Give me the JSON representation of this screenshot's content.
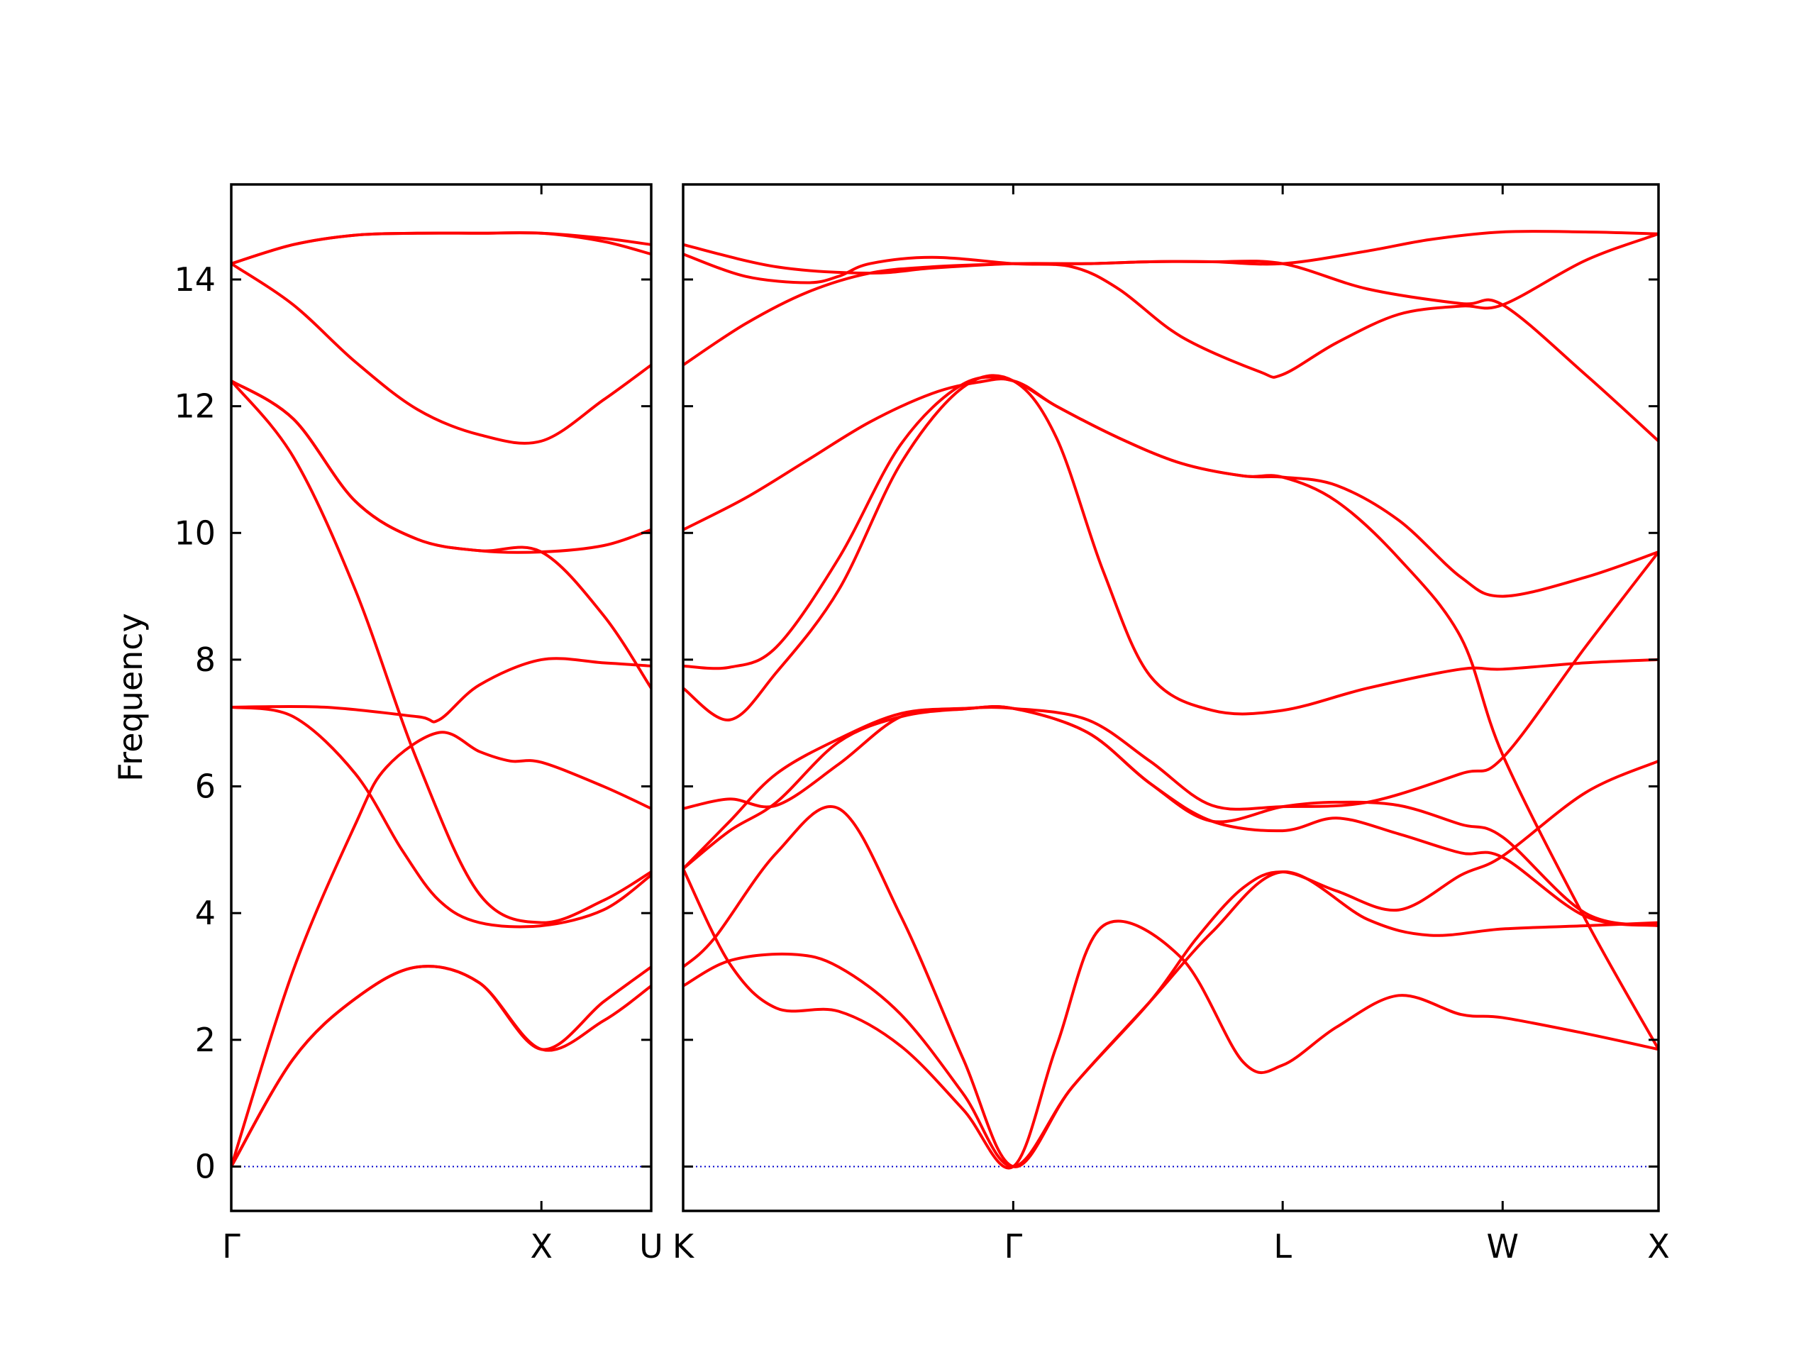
{
  "chart_data": {
    "type": "line",
    "title": "",
    "xlabel": "",
    "ylabel": "Frequency",
    "ylim": [
      -0.7,
      15.5
    ],
    "yticks": [
      0,
      2,
      4,
      6,
      8,
      10,
      12,
      14
    ],
    "colors": {
      "band": "#ff0000",
      "zero_line": "#0000cc",
      "frame": "#000000"
    },
    "grid": false,
    "legend": "none",
    "panels": [
      {
        "id": "left",
        "xlim": [
          0,
          1.354
        ],
        "xticks": [
          {
            "x": 0,
            "label": "Γ"
          },
          {
            "x": 1.0,
            "label": "X"
          },
          {
            "x": 1.354,
            "label": "U"
          }
        ],
        "bands": [
          {
            "name": "",
            "x": [
              0,
              0.2,
              0.4,
              0.6,
              0.8,
              1.0,
              1.2,
              1.354
            ],
            "y": [
              0,
              1.7,
              2.65,
              3.15,
              2.9,
              1.85,
              2.3,
              2.85
            ]
          },
          {
            "name": "",
            "x": [
              0,
              0.2,
              0.4,
              0.6,
              0.8,
              1.0,
              1.2,
              1.354
            ],
            "y": [
              0,
              1.7,
              2.65,
              3.15,
              2.9,
              1.85,
              2.6,
              3.15
            ]
          },
          {
            "name": "",
            "x": [
              0,
              0.2,
              0.4,
              0.5,
              0.67,
              0.8,
              0.9,
              1.0,
              1.2,
              1.354
            ],
            "y": [
              0,
              3.1,
              5.4,
              6.3,
              6.85,
              6.55,
              6.4,
              6.38,
              6.0,
              5.65
            ]
          },
          {
            "name": "",
            "x": [
              0,
              0.2,
              0.4,
              0.55,
              0.67,
              0.8,
              1.0,
              1.2,
              1.354
            ],
            "y": [
              7.25,
              7.1,
              6.2,
              5.0,
              4.2,
              3.85,
              3.8,
              4.05,
              4.6
            ]
          },
          {
            "name": "",
            "x": [
              0,
              0.3,
              0.6,
              0.67,
              0.8,
              1.0,
              1.2,
              1.354
            ],
            "y": [
              7.25,
              7.25,
              7.1,
              7.05,
              7.6,
              8.0,
              7.95,
              7.9
            ]
          },
          {
            "name": "",
            "x": [
              0,
              0.2,
              0.4,
              0.6,
              0.8,
              1.0,
              1.2,
              1.354
            ],
            "y": [
              12.4,
              11.2,
              9.1,
              6.4,
              4.3,
              3.85,
              4.2,
              4.65
            ]
          },
          {
            "name": "",
            "x": [
              0,
              0.2,
              0.4,
              0.6,
              0.8,
              1.0,
              1.2,
              1.354
            ],
            "y": [
              12.4,
              11.8,
              10.5,
              9.9,
              9.72,
              9.7,
              9.8,
              10.05
            ]
          },
          {
            "name": "",
            "x": [
              0,
              0.2,
              0.4,
              0.6,
              0.8,
              1.0,
              1.2,
              1.354
            ],
            "y": [
              12.4,
              11.8,
              10.5,
              9.9,
              9.72,
              9.7,
              8.7,
              7.55
            ]
          },
          {
            "name": "",
            "x": [
              0,
              0.2,
              0.4,
              0.6,
              0.8,
              1.0,
              1.2,
              1.354
            ],
            "y": [
              14.25,
              13.6,
              12.7,
              11.95,
              11.55,
              11.45,
              12.1,
              12.65
            ]
          },
          {
            "name": "",
            "x": [
              0,
              0.2,
              0.4,
              0.6,
              0.8,
              1.0,
              1.2,
              1.354
            ],
            "y": [
              14.25,
              14.55,
              14.7,
              14.73,
              14.73,
              14.73,
              14.65,
              14.55
            ]
          },
          {
            "name": "",
            "x": [
              0,
              0.2,
              0.4,
              0.6,
              0.8,
              1.0,
              1.2,
              1.354
            ],
            "y": [
              14.25,
              14.55,
              14.7,
              14.73,
              14.73,
              14.73,
              14.6,
              14.4
            ]
          }
        ]
      },
      {
        "id": "right",
        "xlim": [
          0,
          3.135
        ],
        "xticks": [
          {
            "x": 0,
            "label": "K"
          },
          {
            "x": 1.061,
            "label": "Γ"
          },
          {
            "x": 1.927,
            "label": "L"
          },
          {
            "x": 2.634,
            "label": "W"
          },
          {
            "x": 3.135,
            "label": "X"
          }
        ],
        "bands": [
          {
            "name": "",
            "x": [
              0,
              0.15,
              0.35,
              0.5,
              0.7,
              0.9,
              1.061,
              1.25,
              1.5,
              1.7,
              1.927,
              2.2,
              2.4,
              2.634,
              2.9,
              3.135
            ],
            "y": [
              2.85,
              3.25,
              3.35,
              3.15,
              2.4,
              1.15,
              0,
              1.25,
              2.6,
              3.7,
              4.65,
              3.9,
              3.65,
              3.75,
              3.8,
              3.85
            ]
          },
          {
            "name": "",
            "x": [
              0,
              0.1,
              0.3,
              0.5,
              0.7,
              0.9,
              1.061,
              1.25,
              1.5,
              1.65,
              1.8,
              1.927,
              2.1,
              2.3,
              2.5,
              2.634,
              2.9,
              3.135
            ],
            "y": [
              3.15,
              3.6,
              4.95,
              5.65,
              3.95,
              1.7,
              0,
              1.25,
              2.6,
              3.6,
              4.4,
              4.65,
              4.35,
              4.05,
              4.6,
              4.9,
              5.9,
              6.4
            ]
          },
          {
            "name": "",
            "x": [
              0,
              0.15,
              0.3,
              0.5,
              0.7,
              0.9,
              1.061,
              1.2,
              1.35,
              1.6,
              1.8,
              1.927,
              2.1,
              2.3,
              2.5,
              2.634,
              2.9,
              3.135
            ],
            "y": [
              4.7,
              3.2,
              2.5,
              2.45,
              1.9,
              0.9,
              0,
              1.9,
              3.8,
              3.3,
              1.65,
              1.6,
              2.2,
              2.7,
              2.4,
              2.35,
              2.1,
              1.85
            ]
          },
          {
            "name": "",
            "x": [
              0,
              0.15,
              0.3,
              0.5,
              0.7,
              0.9,
              1.061,
              1.3,
              1.5,
              1.7,
              1.927,
              2.2,
              2.5,
              2.634,
              2.9,
              3.135
            ],
            "y": [
              4.7,
              5.45,
              6.2,
              6.75,
              7.15,
              7.23,
              7.23,
              7.05,
              6.4,
              5.7,
              5.68,
              5.75,
              6.2,
              6.45,
              8.2,
              9.7
            ]
          },
          {
            "name": "",
            "x": [
              0,
              0.15,
              0.3,
              0.5,
              0.7,
              0.9,
              1.061,
              1.3,
              1.5,
              1.7,
              1.927,
              2.1,
              2.3,
              2.5,
              2.634,
              2.9,
              3.135
            ],
            "y": [
              4.7,
              5.3,
              5.75,
              6.7,
              7.1,
              7.22,
              7.23,
              6.85,
              6.05,
              5.45,
              5.3,
              5.5,
              5.25,
              4.95,
              4.88,
              3.95,
              3.8
            ]
          },
          {
            "name": "",
            "x": [
              0,
              0.15,
              0.3,
              0.5,
              0.7,
              0.9,
              1.061,
              1.3,
              1.5,
              1.7,
              1.927,
              2.1,
              2.3,
              2.5,
              2.634,
              2.9,
              3.135
            ],
            "y": [
              5.65,
              5.8,
              5.7,
              6.35,
              7.1,
              7.22,
              7.23,
              6.85,
              6.05,
              5.45,
              5.68,
              5.75,
              5.7,
              5.4,
              5.2,
              4.0,
              3.8
            ]
          },
          {
            "name": "",
            "x": [
              0,
              0.15,
              0.3,
              0.5,
              0.7,
              0.9,
              1.061,
              1.2,
              1.35,
              1.5,
              1.7,
              1.927,
              2.2,
              2.5,
              2.634,
              2.9,
              3.135
            ],
            "y": [
              7.55,
              7.05,
              7.8,
              9.1,
              11.1,
              12.3,
              12.4,
              11.5,
              9.4,
              7.75,
              7.2,
              7.2,
              7.55,
              7.85,
              7.85,
              7.95,
              8.0
            ]
          },
          {
            "name": "",
            "x": [
              0,
              0.15,
              0.3,
              0.5,
              0.7,
              0.9,
              1.061,
              1.2,
              1.4,
              1.6,
              1.8,
              1.927,
              2.1,
              2.3,
              2.5,
              2.634,
              2.9,
              3.135
            ],
            "y": [
              7.9,
              7.88,
              8.2,
              9.6,
              11.4,
              12.35,
              12.4,
              12.0,
              11.5,
              11.1,
              10.9,
              10.88,
              10.5,
              9.6,
              8.35,
              6.5,
              3.9,
              1.85
            ]
          },
          {
            "name": "",
            "x": [
              0,
              0.2,
              0.4,
              0.6,
              0.8,
              0.95,
              1.061,
              1.2,
              1.4,
              1.6,
              1.8,
              1.927,
              2.1,
              2.3,
              2.5,
              2.634,
              2.9,
              3.135
            ],
            "y": [
              10.05,
              10.55,
              11.15,
              11.75,
              12.2,
              12.38,
              12.4,
              12.0,
              11.5,
              11.1,
              10.9,
              10.88,
              10.75,
              10.2,
              9.3,
              9.0,
              9.3,
              9.7
            ]
          },
          {
            "name": "",
            "x": [
              0,
              0.2,
              0.4,
              0.6,
              0.8,
              1.0,
              1.061,
              1.3,
              1.5,
              1.7,
              1.927,
              2.2,
              2.4,
              2.634,
              2.9,
              3.135
            ],
            "y": [
              12.65,
              13.3,
              13.8,
              14.1,
              14.2,
              14.24,
              14.25,
              14.25,
              14.28,
              14.28,
              14.25,
              14.45,
              14.63,
              14.75,
              14.75,
              14.72
            ]
          },
          {
            "name": "",
            "x": [
              0,
              0.2,
              0.4,
              0.5,
              0.6,
              0.8,
              1.061,
              1.25,
              1.4,
              1.6,
              1.85,
              1.927,
              2.1,
              2.3,
              2.5,
              2.634,
              2.9,
              3.135
            ],
            "y": [
              14.4,
              14.05,
              13.95,
              14.05,
              14.25,
              14.35,
              14.25,
              14.2,
              13.85,
              13.1,
              12.55,
              12.5,
              13.0,
              13.45,
              13.58,
              13.6,
              14.3,
              14.72
            ]
          },
          {
            "name": "",
            "x": [
              0,
              0.3,
              0.6,
              0.8,
              1.061,
              1.3,
              1.5,
              1.7,
              1.927,
              2.2,
              2.5,
              2.634,
              2.9,
              3.135
            ],
            "y": [
              14.55,
              14.2,
              14.1,
              14.18,
              14.25,
              14.25,
              14.28,
              14.28,
              14.25,
              13.85,
              13.62,
              13.6,
              12.5,
              11.45
            ]
          }
        ]
      }
    ]
  }
}
